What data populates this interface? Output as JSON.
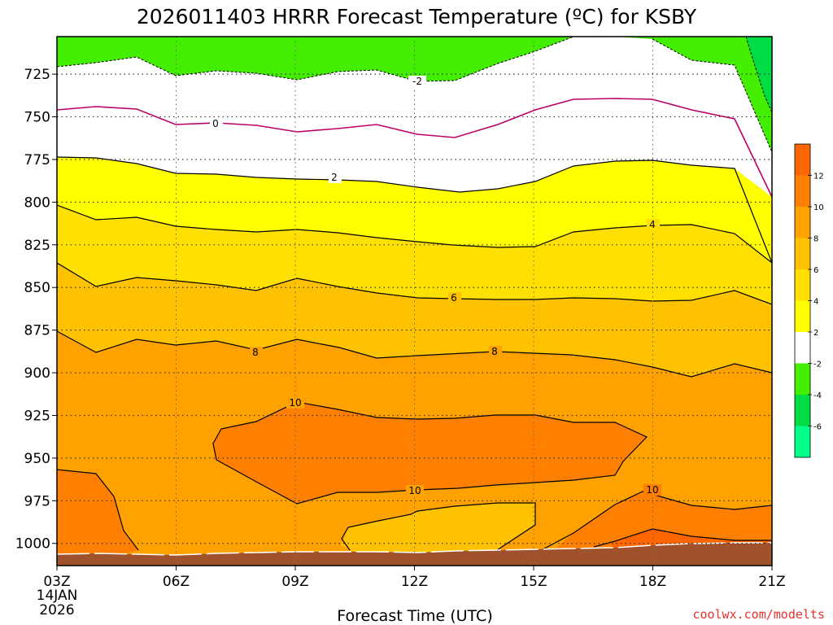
{
  "chart_data": {
    "type": "heatmap",
    "title": "2026011403 HRRR Forecast Temperature (ºC) for KSBY",
    "xlabel": "Forecast Time (UTC)",
    "ylabel": "",
    "y_scale": "pressure (inverted)",
    "ylim": [
      1013,
      703
    ],
    "y_ticks": [
      "725",
      "750",
      "775",
      "800",
      "825",
      "850",
      "875",
      "900",
      "925",
      "950",
      "975",
      "1000"
    ],
    "y_tick_values": [
      725,
      750,
      775,
      800,
      825,
      850,
      875,
      900,
      925,
      950,
      975,
      1000
    ],
    "x_hours": [
      0,
      3,
      6,
      9,
      12,
      15,
      18
    ],
    "x_ticks": [
      "03Z",
      "06Z",
      "09Z",
      "12Z",
      "15Z",
      "18Z",
      "21Z"
    ],
    "x_start_date": "14JAN",
    "x_start_year": "2026",
    "grid": true,
    "colorbar": {
      "position": "right",
      "labels": [
        "12",
        "10",
        "8",
        "6",
        "4",
        "2",
        "-2",
        "-4",
        "-6"
      ],
      "bins": [
        {
          "range": [
            12,
            14
          ],
          "color": "#ff6600"
        },
        {
          "range": [
            10,
            12
          ],
          "color": "#ff8000"
        },
        {
          "range": [
            8,
            10
          ],
          "color": "#ffa200"
        },
        {
          "range": [
            6,
            8
          ],
          "color": "#ffc200"
        },
        {
          "range": [
            4,
            6
          ],
          "color": "#ffe000"
        },
        {
          "range": [
            2,
            4
          ],
          "color": "#ffff00"
        },
        {
          "range": [
            -2,
            2
          ],
          "color": "#ffffff"
        },
        {
          "range": [
            -4,
            -2
          ],
          "color": "#44ee00"
        },
        {
          "range": [
            -6,
            -4
          ],
          "color": "#00dd44"
        },
        {
          "range": [
            -8,
            -6
          ],
          "color": "#00ff88"
        }
      ]
    },
    "contour_labels": [
      "-2",
      "0",
      "2",
      "4",
      "6",
      "8",
      "8",
      "10",
      "10",
      "10"
    ],
    "ground_color": "#a0522d"
  },
  "credit": "coolwx.com/modelts"
}
